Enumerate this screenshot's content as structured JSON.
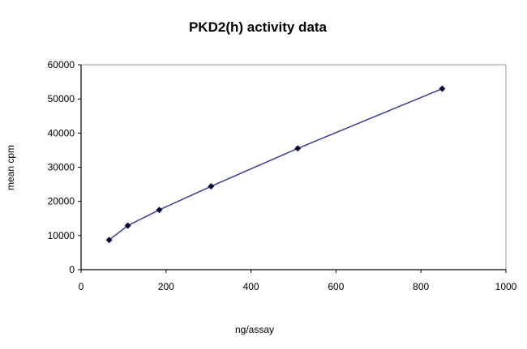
{
  "chart_data": {
    "type": "line",
    "title": "PKD2(h) activity data",
    "xlabel": "ng/assay",
    "ylabel": "mean cpm",
    "xlim": [
      0,
      1000
    ],
    "ylim": [
      0,
      60000
    ],
    "xticks": [
      0,
      200,
      400,
      600,
      800,
      1000
    ],
    "yticks": [
      0,
      10000,
      20000,
      30000,
      40000,
      50000,
      60000
    ],
    "grid": false,
    "legend": "none",
    "marker": "diamond",
    "line_color": "#3a3a9a",
    "marker_color": "#0a0a3a",
    "series": [
      {
        "x": [
          66,
          110,
          184,
          306,
          510,
          850
        ],
        "y": [
          8700,
          12900,
          17500,
          24400,
          35500,
          53000
        ]
      }
    ]
  }
}
